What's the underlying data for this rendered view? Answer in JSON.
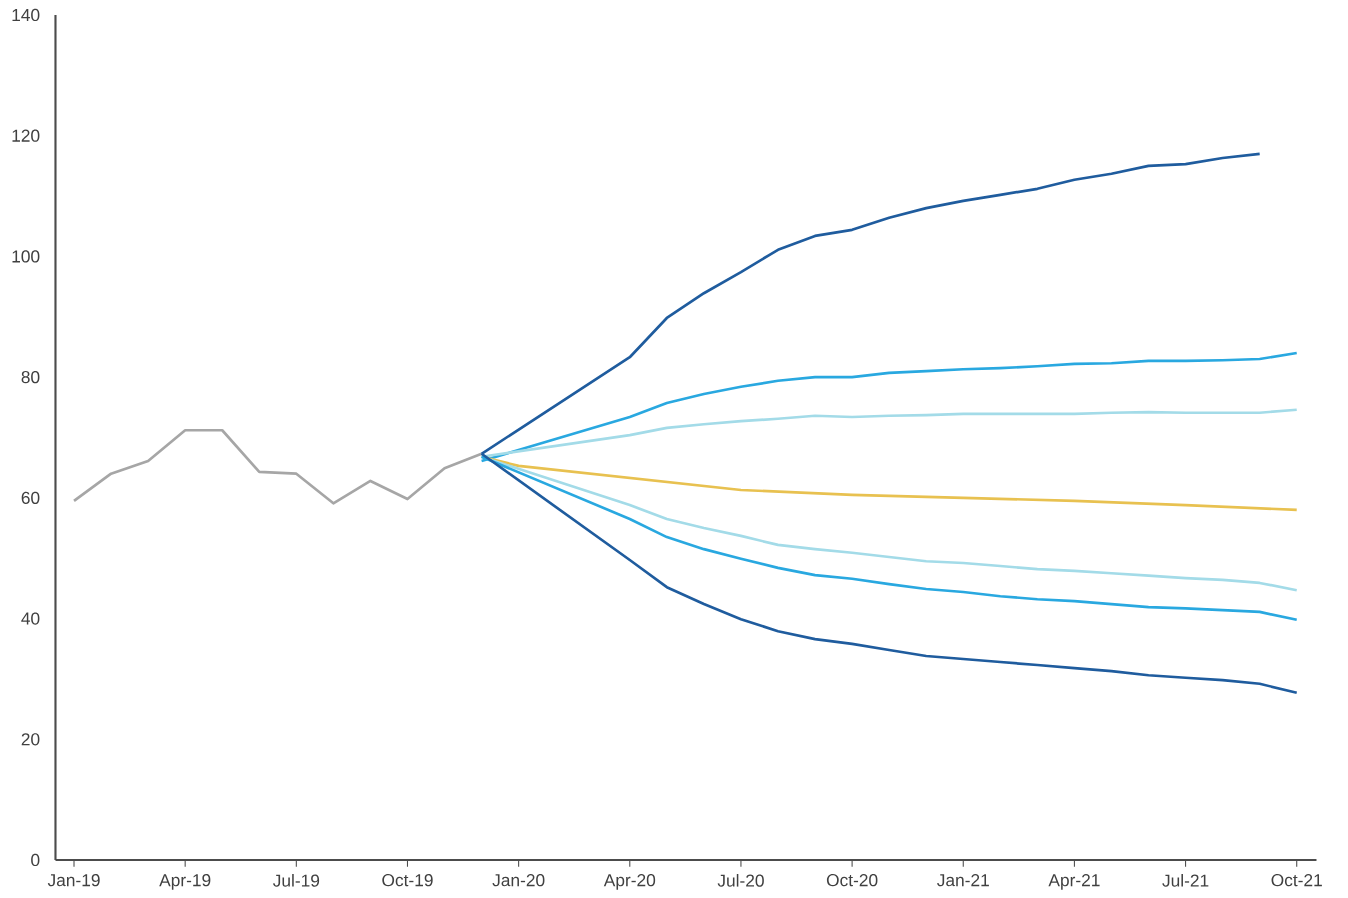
{
  "chart_data": {
    "type": "line",
    "xlim": [
      "2018-12-16",
      "2021-10-17"
    ],
    "ylim": [
      0,
      140
    ],
    "yticks": [
      0,
      20,
      40,
      60,
      80,
      100,
      120,
      140
    ],
    "xticks": [
      {
        "value": "2019-01",
        "label": "Jan-19"
      },
      {
        "value": "2019-04",
        "label": "Apr-19"
      },
      {
        "value": "2019-07",
        "label": "Jul-19"
      },
      {
        "value": "2019-10",
        "label": "Oct-19"
      },
      {
        "value": "2020-01",
        "label": "Jan-20"
      },
      {
        "value": "2020-04",
        "label": "Apr-20"
      },
      {
        "value": "2020-07",
        "label": "Jul-20"
      },
      {
        "value": "2020-10",
        "label": "Oct-20"
      },
      {
        "value": "2021-01",
        "label": "Jan-21"
      },
      {
        "value": "2021-04",
        "label": "Apr-21"
      },
      {
        "value": "2021-07",
        "label": "Jul-21"
      },
      {
        "value": "2021-10",
        "label": "Oct-21"
      }
    ],
    "grid": false,
    "marker": "none",
    "line_style": "solid",
    "series": [
      {
        "color": "#a6a6a6",
        "x": [
          "2019-01",
          "2019-02",
          "2019-03",
          "2019-04",
          "2019-05",
          "2019-06",
          "2019-07",
          "2019-08",
          "2019-09",
          "2019-10",
          "2019-11",
          "2019-12"
        ],
        "values": [
          59.5,
          64.0,
          66.1,
          71.2,
          71.2,
          64.3,
          64.0,
          59.1,
          62.8,
          59.8,
          64.9,
          67.3
        ]
      },
      {
        "color": "#1f5c9e",
        "x": [
          "2019-12",
          "2020-04",
          "2020-05",
          "2020-06",
          "2020-07",
          "2020-08",
          "2020-09",
          "2020-10",
          "2020-11",
          "2020-12",
          "2021-01",
          "2021-02",
          "2021-03",
          "2021-04",
          "2021-05",
          "2021-06",
          "2021-07",
          "2021-08",
          "2021-09"
        ],
        "values": [
          67.3,
          83.3,
          89.8,
          93.9,
          97.4,
          101.1,
          103.4,
          104.4,
          106.4,
          108.0,
          109.2,
          110.2,
          111.2,
          112.7,
          113.7,
          115.0,
          115.3,
          116.3,
          117.0
        ]
      },
      {
        "color": "#29a8e0",
        "x": [
          "2019-12",
          "2020-04",
          "2020-05",
          "2020-06",
          "2020-07",
          "2020-08",
          "2020-09",
          "2020-10",
          "2020-11",
          "2020-12",
          "2021-01",
          "2021-02",
          "2021-03",
          "2021-04",
          "2021-05",
          "2021-06",
          "2021-07",
          "2021-08",
          "2021-09",
          "2021-10"
        ],
        "values": [
          66.1,
          73.4,
          75.7,
          77.2,
          78.4,
          79.4,
          80.0,
          80.0,
          80.7,
          81.0,
          81.3,
          81.5,
          81.8,
          82.2,
          82.3,
          82.7,
          82.7,
          82.8,
          83.0,
          84.0
        ]
      },
      {
        "color": "#a3dbe8",
        "x": [
          "2019-12",
          "2020-04",
          "2020-05",
          "2020-06",
          "2020-07",
          "2020-08",
          "2020-09",
          "2020-10",
          "2020-11",
          "2020-12",
          "2021-01",
          "2021-02",
          "2021-03",
          "2021-04",
          "2021-05",
          "2021-06",
          "2021-07",
          "2021-08",
          "2021-09",
          "2021-10"
        ],
        "values": [
          66.8,
          70.4,
          71.6,
          72.2,
          72.7,
          73.1,
          73.6,
          73.4,
          73.6,
          73.7,
          73.9,
          73.9,
          73.9,
          73.9,
          74.1,
          74.2,
          74.1,
          74.1,
          74.1,
          74.6
        ]
      },
      {
        "color": "#e8c150",
        "x": [
          "2019-12",
          "2020-01",
          "2020-07",
          "2020-10",
          "2021-01",
          "2021-04",
          "2021-07",
          "2021-10"
        ],
        "values": [
          66.8,
          65.3,
          61.3,
          60.5,
          60.0,
          59.5,
          58.8,
          58.0
        ]
      },
      {
        "color": "#a3dbe8",
        "x": [
          "2019-12",
          "2020-04",
          "2020-05",
          "2020-06",
          "2020-07",
          "2020-08",
          "2020-09",
          "2020-10",
          "2020-11",
          "2020-12",
          "2021-01",
          "2021-02",
          "2021-03",
          "2021-04",
          "2021-05",
          "2021-06",
          "2021-07",
          "2021-08",
          "2021-09",
          "2021-10"
        ],
        "values": [
          66.8,
          58.8,
          56.5,
          55.0,
          53.7,
          52.2,
          51.5,
          50.9,
          50.2,
          49.5,
          49.2,
          48.7,
          48.2,
          47.9,
          47.5,
          47.1,
          46.7,
          46.4,
          45.9,
          44.7
        ]
      },
      {
        "color": "#29a8e0",
        "x": [
          "2019-12",
          "2020-04",
          "2020-05",
          "2020-06",
          "2020-07",
          "2020-08",
          "2020-09",
          "2020-10",
          "2020-11",
          "2020-12",
          "2021-01",
          "2021-02",
          "2021-03",
          "2021-04",
          "2021-05",
          "2021-06",
          "2021-07",
          "2021-08",
          "2021-09",
          "2021-10"
        ],
        "values": [
          66.8,
          56.5,
          53.5,
          51.5,
          49.9,
          48.4,
          47.2,
          46.6,
          45.7,
          44.9,
          44.4,
          43.7,
          43.2,
          42.9,
          42.4,
          41.9,
          41.7,
          41.4,
          41.1,
          39.8
        ]
      },
      {
        "color": "#1f5c9e",
        "x": [
          "2019-12",
          "2020-04",
          "2020-05",
          "2020-06",
          "2020-07",
          "2020-08",
          "2020-09",
          "2020-10",
          "2020-11",
          "2020-12",
          "2021-01",
          "2021-02",
          "2021-03",
          "2021-04",
          "2021-05",
          "2021-06",
          "2021-07",
          "2021-08",
          "2021-09",
          "2021-10"
        ],
        "values": [
          67.3,
          49.7,
          45.2,
          42.4,
          39.9,
          37.9,
          36.6,
          35.8,
          34.8,
          33.8,
          33.3,
          32.8,
          32.3,
          31.8,
          31.3,
          30.6,
          30.2,
          29.8,
          29.2,
          27.7
        ]
      }
    ]
  }
}
